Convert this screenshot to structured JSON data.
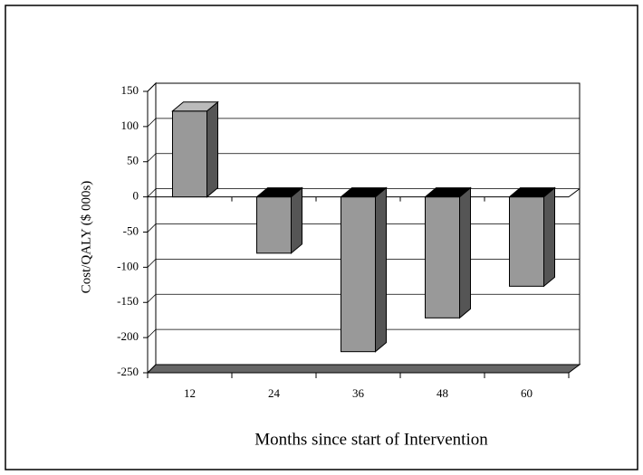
{
  "chart_data": {
    "type": "bar3d",
    "x_label": "Months since start of Intervention",
    "y_label": "Cost/QALY ($ 000s)",
    "categories": [
      "12",
      "24",
      "36",
      "48",
      "60"
    ],
    "values": [
      122,
      -80,
      -220,
      -172,
      -127
    ],
    "color": "#999999",
    "ylim": [
      -250,
      150
    ],
    "yticks": [
      -250,
      -200,
      -150,
      -100,
      -50,
      0,
      50,
      100,
      150
    ],
    "grid": true
  }
}
